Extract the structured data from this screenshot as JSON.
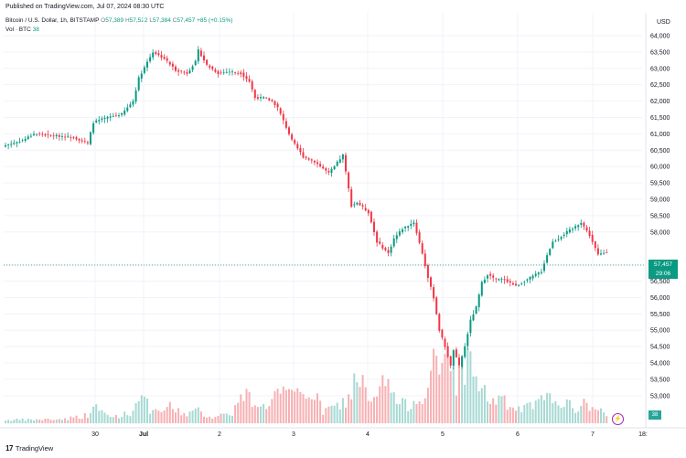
{
  "header": {
    "published": "Published on TradingView.com, Jul 07, 2024 08:30 UTC"
  },
  "legend": {
    "symbol": "Bitcoin / U.S. Dollar, 1h, BITSTAMP",
    "o_label": "O",
    "o": "57,389",
    "h_label": "H",
    "h": "57,522",
    "l_label": "L",
    "l": "57,384",
    "c_label": "C",
    "c": "57,457",
    "change": "+85 (+0.15%)",
    "vol_label": "Vol · BTC",
    "vol": "38"
  },
  "footer": {
    "brand": "TradingView"
  },
  "colors": {
    "up": "#089981",
    "down": "#f23645",
    "vol_up": "#a7d9d3",
    "vol_down": "#f7b0b3",
    "grid": "#f0f3fa"
  },
  "chart_data": {
    "type": "candlestick",
    "currency": "USD",
    "yticks": [
      "64,000",
      "63,500",
      "63,000",
      "62,500",
      "62,000",
      "61,500",
      "61,000",
      "60,500",
      "60,000",
      "59,500",
      "59,000",
      "58,500",
      "58,000",
      "57,000",
      "56,500",
      "56,000",
      "55,500",
      "55,000",
      "54,500",
      "54,000",
      "53,500",
      "53,000"
    ],
    "ytick_values": [
      64000,
      63500,
      63000,
      62500,
      62000,
      61500,
      61000,
      60500,
      60000,
      59500,
      59000,
      58500,
      58000,
      57000,
      56500,
      56000,
      55500,
      55000,
      54500,
      54000,
      53500,
      53000
    ],
    "xticks": [
      "30",
      "Jul",
      "2",
      "3",
      "4",
      "5",
      "6",
      "7",
      "18:"
    ],
    "last_price": "57,457",
    "countdown": "29:06",
    "last_volume": "38",
    "anchors": [
      [
        0,
        60650
      ],
      [
        6,
        60800
      ],
      [
        10,
        61000
      ],
      [
        16,
        60950
      ],
      [
        24,
        60900
      ],
      [
        29,
        60700
      ],
      [
        31,
        61350
      ],
      [
        36,
        61500
      ],
      [
        41,
        61600
      ],
      [
        45,
        62000
      ],
      [
        47,
        62700
      ],
      [
        50,
        63200
      ],
      [
        52,
        63500
      ],
      [
        56,
        63300
      ],
      [
        60,
        62950
      ],
      [
        64,
        62850
      ],
      [
        67,
        63200
      ],
      [
        68,
        63550
      ],
      [
        71,
        63100
      ],
      [
        75,
        62850
      ],
      [
        79,
        62900
      ],
      [
        83,
        62850
      ],
      [
        86,
        62600
      ],
      [
        88,
        62100
      ],
      [
        91,
        62100
      ],
      [
        94,
        62000
      ],
      [
        96,
        61800
      ],
      [
        99,
        61200
      ],
      [
        101,
        60800
      ],
      [
        105,
        60300
      ],
      [
        109,
        60150
      ],
      [
        114,
        59800
      ],
      [
        116,
        60000
      ],
      [
        119,
        60350
      ],
      [
        122,
        58800
      ],
      [
        124,
        58900
      ],
      [
        128,
        58600
      ],
      [
        131,
        57700
      ],
      [
        135,
        57350
      ],
      [
        137,
        57800
      ],
      [
        140,
        58100
      ],
      [
        144,
        58300
      ],
      [
        147,
        57350
      ],
      [
        149,
        56600
      ],
      [
        151,
        56000
      ],
      [
        153,
        55000
      ],
      [
        155,
        54500
      ],
      [
        157,
        53900
      ],
      [
        158,
        54400
      ],
      [
        160,
        53900
      ],
      [
        162,
        54500
      ],
      [
        164,
        55300
      ],
      [
        166,
        55700
      ],
      [
        168,
        56450
      ],
      [
        170,
        56700
      ],
      [
        173,
        56550
      ],
      [
        176,
        56550
      ],
      [
        180,
        56350
      ],
      [
        183,
        56500
      ],
      [
        186,
        56650
      ],
      [
        189,
        56800
      ],
      [
        191,
        57300
      ],
      [
        193,
        57700
      ],
      [
        195,
        57800
      ],
      [
        198,
        58000
      ],
      [
        200,
        58100
      ],
      [
        203,
        58300
      ],
      [
        206,
        57900
      ],
      [
        209,
        57300
      ],
      [
        212,
        57400
      ]
    ],
    "volume_anchors": [
      [
        0,
        4
      ],
      [
        20,
        5
      ],
      [
        29,
        10
      ],
      [
        31,
        20
      ],
      [
        37,
        8
      ],
      [
        44,
        12
      ],
      [
        47,
        30
      ],
      [
        48,
        55
      ],
      [
        49,
        28
      ],
      [
        52,
        12
      ],
      [
        58,
        20
      ],
      [
        63,
        12
      ],
      [
        68,
        15
      ],
      [
        72,
        8
      ],
      [
        76,
        10
      ],
      [
        80,
        14
      ],
      [
        84,
        35
      ],
      [
        88,
        28
      ],
      [
        91,
        20
      ],
      [
        96,
        38
      ],
      [
        100,
        32
      ],
      [
        103,
        35
      ],
      [
        108,
        40
      ],
      [
        112,
        15
      ],
      [
        118,
        22
      ],
      [
        122,
        35
      ],
      [
        124,
        68
      ],
      [
        128,
        25
      ],
      [
        131,
        30
      ],
      [
        134,
        55
      ],
      [
        138,
        26
      ],
      [
        141,
        22
      ],
      [
        145,
        30
      ],
      [
        147,
        38
      ],
      [
        149,
        45
      ],
      [
        151,
        70
      ],
      [
        153,
        60
      ],
      [
        155,
        85
      ],
      [
        157,
        90
      ],
      [
        159,
        50
      ],
      [
        161,
        65
      ],
      [
        163,
        88
      ],
      [
        165,
        60
      ],
      [
        167,
        50
      ],
      [
        170,
        30
      ],
      [
        175,
        28
      ],
      [
        180,
        16
      ],
      [
        185,
        20
      ],
      [
        190,
        28
      ],
      [
        195,
        32
      ],
      [
        200,
        18
      ],
      [
        205,
        24
      ],
      [
        210,
        15
      ],
      [
        212,
        8
      ]
    ]
  }
}
